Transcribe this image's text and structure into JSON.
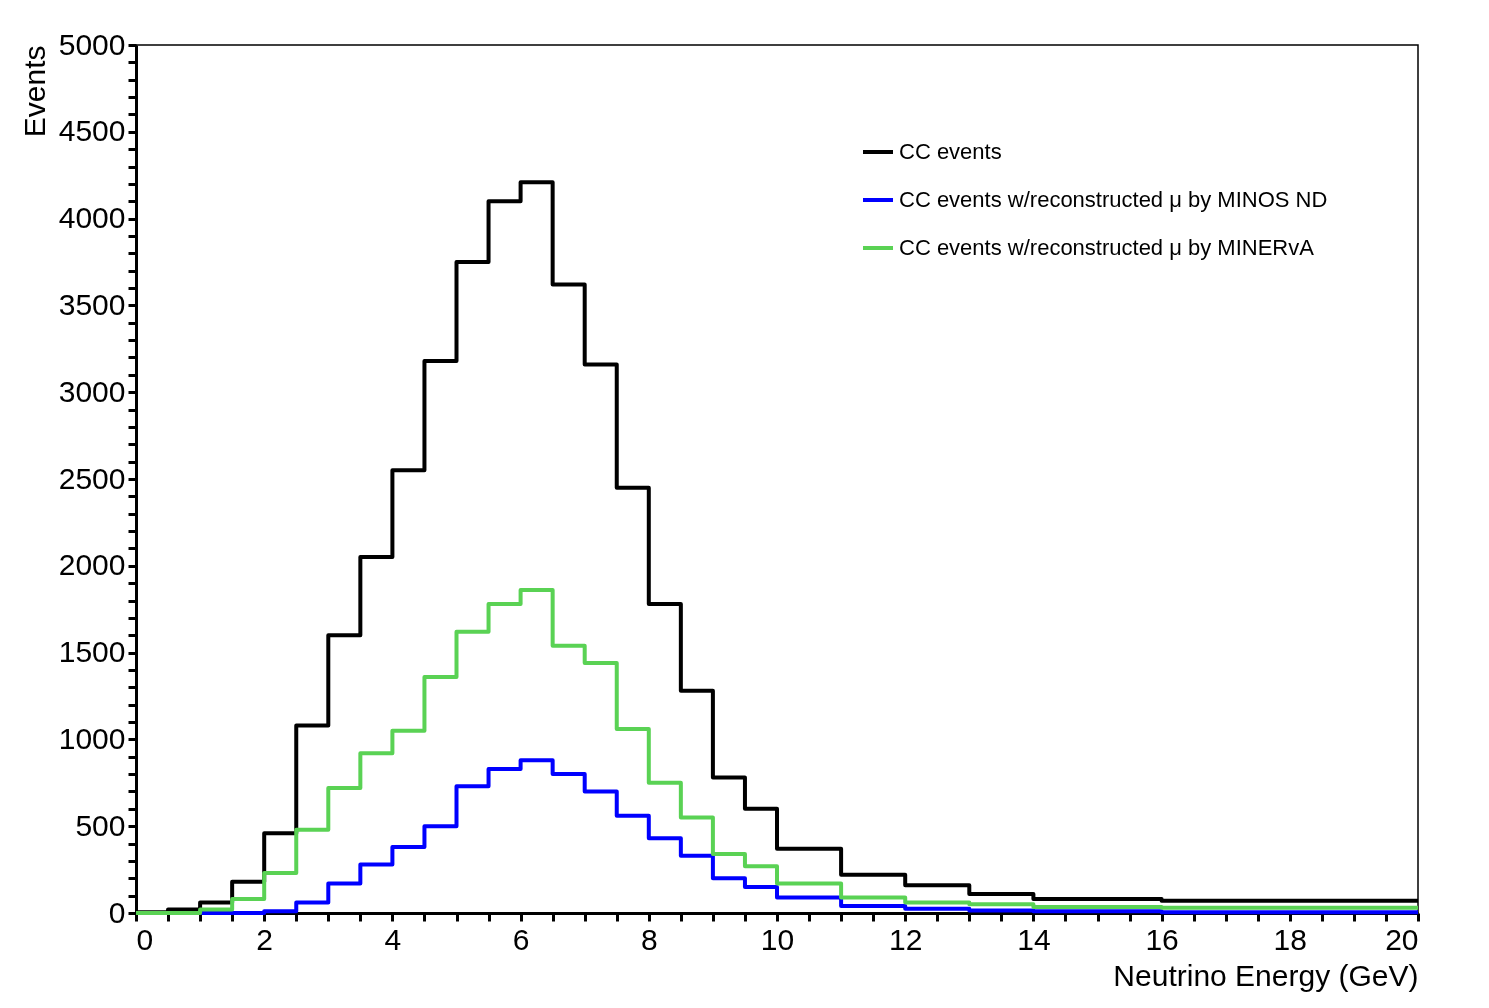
{
  "chart_data": {
    "type": "histogram",
    "xlabel": "Neutrino Energy (GeV)",
    "ylabel": "Events",
    "bins": [
      0,
      0.5,
      1,
      1.5,
      2,
      2.5,
      3,
      3.5,
      4,
      4.5,
      5,
      5.5,
      6,
      6.5,
      7,
      7.5,
      8,
      8.5,
      9,
      9.5,
      10,
      11,
      12,
      13,
      14,
      16,
      20
    ],
    "series": [
      {
        "name": "CC events",
        "color": "#000000",
        "values": [
          5,
          20,
          60,
          180,
          460,
          1080,
          1600,
          2050,
          2550,
          3180,
          3750,
          4100,
          4210,
          3620,
          3160,
          2450,
          1780,
          1280,
          780,
          600,
          370,
          220,
          160,
          110,
          80,
          70
        ]
      },
      {
        "name": "CC events w/reconstructed μ by MINOS ND",
        "color": "#0000ff",
        "values": [
          0,
          0,
          0,
          0,
          10,
          60,
          170,
          280,
          380,
          500,
          730,
          830,
          880,
          800,
          700,
          560,
          430,
          330,
          200,
          150,
          90,
          40,
          25,
          15,
          10,
          5
        ]
      },
      {
        "name": "CC events w/reconstructed μ by MINERvA",
        "color": "#5ad254",
        "values": [
          0,
          0,
          20,
          80,
          230,
          480,
          720,
          920,
          1050,
          1360,
          1620,
          1780,
          1860,
          1540,
          1440,
          1060,
          750,
          550,
          340,
          270,
          170,
          90,
          60,
          50,
          35,
          30
        ]
      }
    ],
    "xlim": [
      0,
      20
    ],
    "ylim": [
      0,
      5000
    ],
    "xticks": [
      0,
      {
        "value": 0.5,
        "label": null
      },
      {
        "value": 1,
        "label": null
      },
      {
        "value": 1.5,
        "label": null
      },
      2,
      {
        "value": 2.5,
        "label": null
      },
      {
        "value": 3,
        "label": null
      },
      {
        "value": 3.5,
        "label": null
      },
      4,
      {
        "value": 4.5,
        "label": null
      },
      {
        "value": 5,
        "label": null
      },
      {
        "value": 5.5,
        "label": null
      },
      6,
      {
        "value": 6.5,
        "label": null
      },
      {
        "value": 7,
        "label": null
      },
      {
        "value": 7.5,
        "label": null
      },
      8,
      {
        "value": 8.5,
        "label": null
      },
      {
        "value": 9,
        "label": null
      },
      {
        "value": 9.5,
        "label": null
      },
      10,
      {
        "value": 10.5,
        "label": null
      },
      {
        "value": 11,
        "label": null
      },
      {
        "value": 11.5,
        "label": null
      },
      12,
      {
        "value": 12.5,
        "label": null
      },
      {
        "value": 13,
        "label": null
      },
      {
        "value": 13.5,
        "label": null
      },
      14,
      {
        "value": 14.5,
        "label": null
      },
      {
        "value": 15,
        "label": null
      },
      {
        "value": 15.5,
        "label": null
      },
      16,
      {
        "value": 16.5,
        "label": null
      },
      {
        "value": 17,
        "label": null
      },
      {
        "value": 17.5,
        "label": null
      },
      18,
      {
        "value": 18.5,
        "label": null
      },
      {
        "value": 19,
        "label": null
      },
      {
        "value": 19.5,
        "label": null
      },
      20
    ],
    "yticks": [
      0,
      {
        "value": 100,
        "label": null
      },
      {
        "value": 200,
        "label": null
      },
      {
        "value": 300,
        "label": null
      },
      {
        "value": 400,
        "label": null
      },
      500,
      {
        "value": 600,
        "label": null
      },
      {
        "value": 700,
        "label": null
      },
      {
        "value": 800,
        "label": null
      },
      {
        "value": 900,
        "label": null
      },
      1000,
      {
        "value": 1100,
        "label": null
      },
      {
        "value": 1200,
        "label": null
      },
      {
        "value": 1300,
        "label": null
      },
      {
        "value": 1400,
        "label": null
      },
      1500,
      {
        "value": 1600,
        "label": null
      },
      {
        "value": 1700,
        "label": null
      },
      {
        "value": 1800,
        "label": null
      },
      {
        "value": 1900,
        "label": null
      },
      2000,
      {
        "value": 2100,
        "label": null
      },
      {
        "value": 2200,
        "label": null
      },
      {
        "value": 2300,
        "label": null
      },
      {
        "value": 2400,
        "label": null
      },
      2500,
      {
        "value": 2600,
        "label": null
      },
      {
        "value": 2700,
        "label": null
      },
      {
        "value": 2800,
        "label": null
      },
      {
        "value": 2900,
        "label": null
      },
      3000,
      {
        "value": 3100,
        "label": null
      },
      {
        "value": 3200,
        "label": null
      },
      {
        "value": 3300,
        "label": null
      },
      {
        "value": 3400,
        "label": null
      },
      3500,
      {
        "value": 3600,
        "label": null
      },
      {
        "value": 3700,
        "label": null
      },
      {
        "value": 3800,
        "label": null
      },
      {
        "value": 3900,
        "label": null
      },
      4000,
      {
        "value": 4100,
        "label": null
      },
      {
        "value": 4200,
        "label": null
      },
      {
        "value": 4300,
        "label": null
      },
      {
        "value": 4400,
        "label": null
      },
      4500,
      {
        "value": 4600,
        "label": null
      },
      {
        "value": 4700,
        "label": null
      },
      {
        "value": 4800,
        "label": null
      },
      {
        "value": 4900,
        "label": null
      },
      5000
    ],
    "grid": false,
    "legend": "top right",
    "line_style": "solid",
    "marker": "none"
  }
}
